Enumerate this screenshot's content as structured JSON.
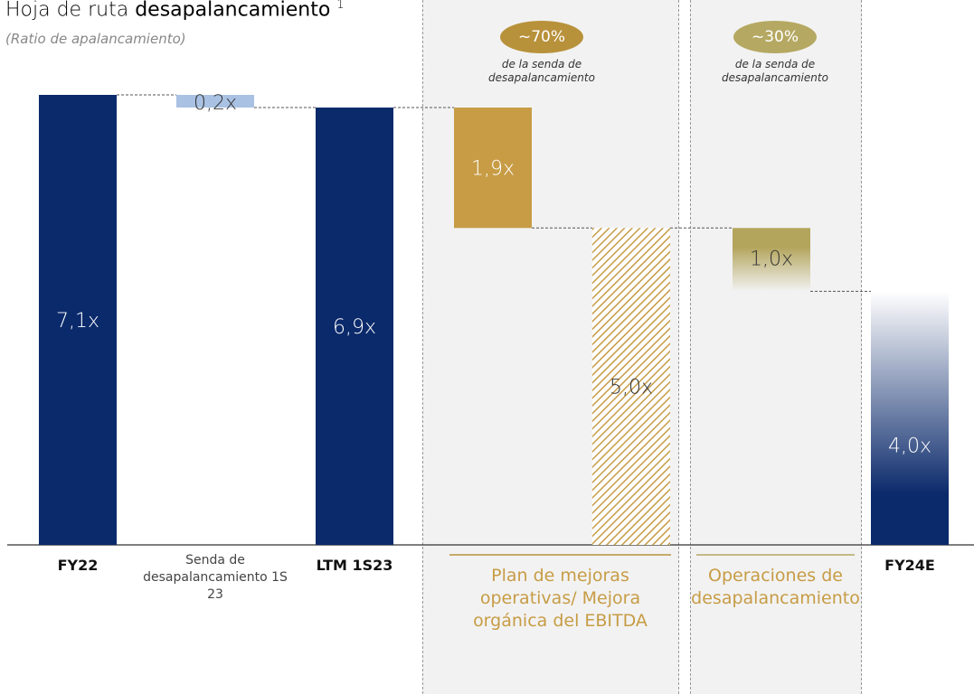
{
  "chart_data": {
    "type": "waterfall",
    "title": "Hoja de ruta",
    "title_emphasis": "desapalancamiento",
    "title_note": "1",
    "subtitle": "(Ratio de apalancamiento)",
    "categories": [
      "FY22",
      "Senda de desapalancamiento 1S 23",
      "LTM 1S23",
      "Plan de mejoras operativas/ Mejora orgánica del EBITDA",
      null,
      "Operaciones de desapalancamiento",
      "FY24E"
    ],
    "values": [
      7.1,
      0.2,
      6.9,
      1.9,
      5.0,
      1.0,
      4.0
    ],
    "value_labels": [
      "7,1x",
      "0,2x",
      "6,9x",
      "1,9x",
      "5,0x",
      "1,0x",
      "4,0x"
    ],
    "measures": [
      "total",
      "decrease",
      "total",
      "decrease",
      "total",
      "decrease",
      "total"
    ],
    "colors": [
      "#0b2a6b",
      "#a9c1e3",
      "#0b2a6b",
      "#c79c45",
      "#c79c45",
      "#b3a55c",
      "#0b2a6b"
    ],
    "patterns": [
      "solid",
      "solid",
      "solid",
      "solid",
      "hatch",
      "fade-down",
      "fade-up"
    ],
    "panels": [
      {
        "badge": "~70%",
        "note": "de la senda de desapalancamiento",
        "color": "#b8913b"
      },
      {
        "badge": "~30%",
        "note": "de la senda de desapalancamiento",
        "color": "#b5a862"
      }
    ]
  }
}
